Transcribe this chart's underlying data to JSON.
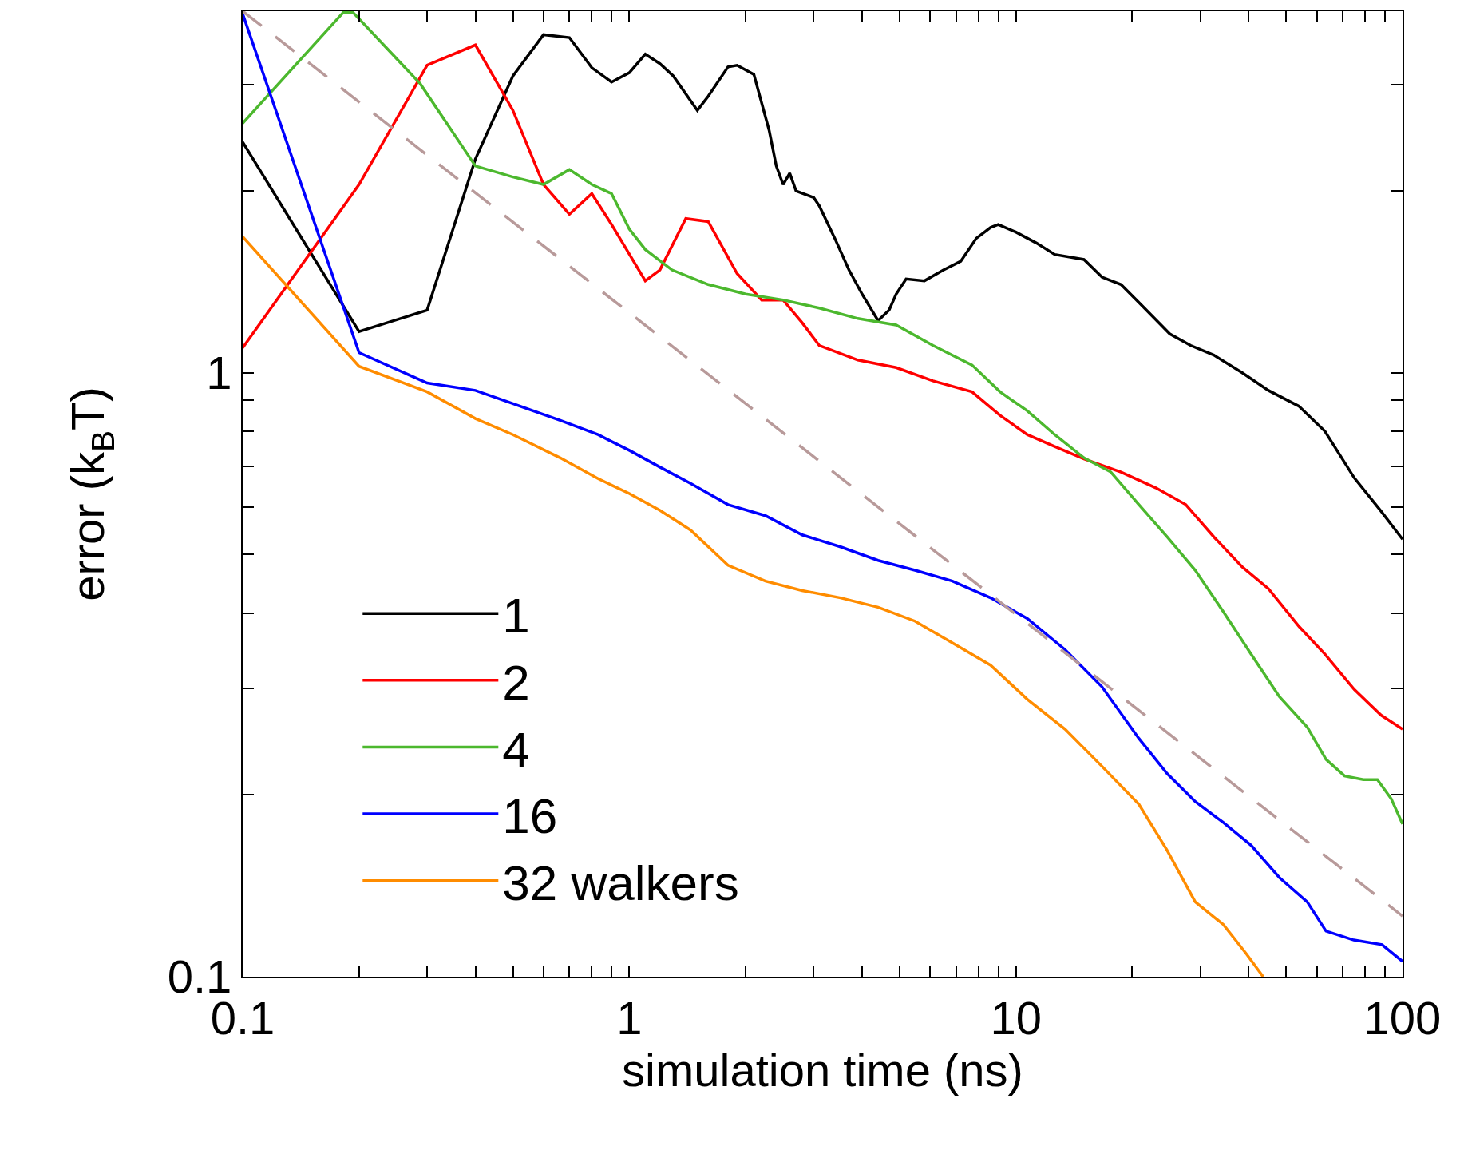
{
  "chart_data": {
    "type": "line",
    "xlabel": "simulation time (ns)",
    "ylabel": "error (k$_{B}$T)",
    "log": "xy",
    "legend": "bottom left",
    "marker": "none",
    "line_style": "solid",
    "xlim": [
      0.1,
      100
    ],
    "ylim": [
      0.1,
      3.97
    ],
    "xticks": [
      0.1,
      {
        "value": 0.2,
        "label": null
      },
      {
        "value": 0.3,
        "label": null
      },
      {
        "value": 0.4,
        "label": null
      },
      {
        "value": 0.5,
        "label": null
      },
      {
        "value": 0.6,
        "label": null
      },
      {
        "value": 0.7,
        "label": null
      },
      {
        "value": 0.8,
        "label": null
      },
      {
        "value": 0.9,
        "label": null
      },
      1,
      {
        "value": 2,
        "label": null
      },
      {
        "value": 3,
        "label": null
      },
      {
        "value": 4,
        "label": null
      },
      {
        "value": 5,
        "label": null
      },
      {
        "value": 6,
        "label": null
      },
      {
        "value": 7,
        "label": null
      },
      {
        "value": 8,
        "label": null
      },
      {
        "value": 9,
        "label": null
      },
      10,
      {
        "value": 20,
        "label": null
      },
      {
        "value": 30,
        "label": null
      },
      {
        "value": 40,
        "label": null
      },
      {
        "value": 50,
        "label": null
      },
      {
        "value": 60,
        "label": null
      },
      {
        "value": 70,
        "label": null
      },
      {
        "value": 80,
        "label": null
      },
      {
        "value": 90,
        "label": null
      },
      100
    ],
    "yticks": [
      0.1,
      {
        "value": 0.2,
        "label": null
      },
      {
        "value": 0.3,
        "label": null
      },
      {
        "value": 0.4,
        "label": null
      },
      {
        "value": 0.5,
        "label": null
      },
      {
        "value": 0.6,
        "label": null
      },
      {
        "value": 0.7,
        "label": null
      },
      {
        "value": 0.8,
        "label": null
      },
      {
        "value": 0.9,
        "label": null
      },
      1,
      {
        "value": 2,
        "label": null
      },
      {
        "value": 3,
        "label": null
      }
    ],
    "series": [
      {
        "name": "1",
        "color": "#000000",
        "x": [
          0.1,
          0.2,
          0.3,
          0.4,
          0.5,
          0.6,
          0.7,
          0.8,
          0.9,
          1,
          1.1,
          1.2,
          1.3,
          1.5,
          1.6,
          1.8,
          1.9,
          2.1,
          2.3,
          2.4,
          2.5,
          2.6,
          2.7,
          3.0,
          3.1,
          3.4,
          3.7,
          4.0,
          4.4,
          4.7,
          4.9,
          5.2,
          5.8,
          6.5,
          7.2,
          7.9,
          8.6,
          9.0,
          10,
          11.3,
          12.6,
          15,
          16.7,
          18.7,
          21,
          25,
          28.3,
          32.5,
          38.5,
          45,
          54,
          63,
          75,
          88,
          100
        ],
        "values": [
          2.41,
          1.17,
          1.27,
          2.26,
          3.1,
          3.63,
          3.59,
          3.2,
          3.03,
          3.14,
          3.37,
          3.25,
          3.1,
          2.72,
          2.87,
          3.21,
          3.23,
          3.12,
          2.52,
          2.2,
          2.05,
          2.14,
          2.0,
          1.95,
          1.89,
          1.67,
          1.48,
          1.35,
          1.22,
          1.27,
          1.35,
          1.43,
          1.42,
          1.48,
          1.53,
          1.67,
          1.74,
          1.76,
          1.71,
          1.64,
          1.57,
          1.54,
          1.44,
          1.4,
          1.3,
          1.16,
          1.11,
          1.07,
          1.0,
          0.935,
          0.88,
          0.8,
          0.67,
          0.59,
          0.53
        ]
      },
      {
        "name": "2",
        "color": "#ff0000",
        "x": [
          0.1,
          0.2,
          0.3,
          0.4,
          0.5,
          0.6,
          0.7,
          0.8,
          0.9,
          1.1,
          1.2,
          1.4,
          1.6,
          1.9,
          2.2,
          2.5,
          2.8,
          3.1,
          3.9,
          4.9,
          6.1,
          7.7,
          9.1,
          10.7,
          12.6,
          15,
          18.7,
          23,
          27.5,
          32.5,
          38.5,
          45,
          54,
          63,
          75,
          88,
          100
        ],
        "values": [
          1.1,
          2.05,
          3.23,
          3.49,
          2.72,
          2.05,
          1.83,
          1.98,
          1.76,
          1.42,
          1.48,
          1.8,
          1.78,
          1.46,
          1.32,
          1.32,
          1.21,
          1.11,
          1.05,
          1.02,
          0.97,
          0.93,
          0.85,
          0.79,
          0.755,
          0.72,
          0.685,
          0.645,
          0.605,
          0.535,
          0.477,
          0.439,
          0.38,
          0.342,
          0.299,
          0.271,
          0.257
        ]
      },
      {
        "name": "4",
        "color": "#4cb82e",
        "x": [
          0.1,
          0.182,
          0.193,
          0.288,
          0.4,
          0.5,
          0.6,
          0.7,
          0.8,
          0.9,
          1,
          1.1,
          1.29,
          1.6,
          2.0,
          2.5,
          3.1,
          3.9,
          4.9,
          6.1,
          7.7,
          9.1,
          10.7,
          12.6,
          15,
          17.6,
          20.8,
          24.6,
          29.1,
          34.4,
          40.6,
          48,
          56.7,
          63.4,
          70.8,
          79.2,
          86.1,
          93.5,
          100
        ],
        "values": [
          2.59,
          3.95,
          3.95,
          3.01,
          2.2,
          2.11,
          2.05,
          2.17,
          2.05,
          1.98,
          1.73,
          1.6,
          1.48,
          1.4,
          1.35,
          1.32,
          1.28,
          1.23,
          1.2,
          1.11,
          1.03,
          0.93,
          0.865,
          0.79,
          0.723,
          0.685,
          0.605,
          0.535,
          0.471,
          0.402,
          0.342,
          0.291,
          0.259,
          0.229,
          0.215,
          0.212,
          0.212,
          0.197,
          0.179
        ]
      },
      {
        "name": "16",
        "color": "#0000ff",
        "x": [
          0.1,
          0.2,
          0.3,
          0.4,
          0.5,
          0.663,
          0.83,
          1,
          1.2,
          1.44,
          1.8,
          2.25,
          2.8,
          3.52,
          4.4,
          5.48,
          6.85,
          8.6,
          10.7,
          13.4,
          16.7,
          20.8,
          24.6,
          29.1,
          34.4,
          40.6,
          48,
          56.7,
          63.4,
          74.8,
          88.5,
          100
        ],
        "values": [
          3.93,
          1.08,
          0.962,
          0.935,
          0.889,
          0.834,
          0.79,
          0.744,
          0.698,
          0.656,
          0.605,
          0.58,
          0.539,
          0.515,
          0.489,
          0.471,
          0.452,
          0.424,
          0.392,
          0.348,
          0.302,
          0.248,
          0.217,
          0.195,
          0.18,
          0.165,
          0.146,
          0.133,
          0.119,
          0.115,
          0.113,
          0.106
        ]
      },
      {
        "name": "32 walkers",
        "color": "#ff8c00",
        "x": [
          0.1,
          0.2,
          0.3,
          0.4,
          0.5,
          0.663,
          0.83,
          1,
          1.2,
          1.44,
          1.8,
          2.25,
          2.8,
          3.52,
          4.4,
          5.48,
          6.85,
          8.6,
          10.7,
          13.4,
          16.7,
          20.8,
          24.6,
          29.1,
          34.4,
          39.5,
          43.6
        ],
        "values": [
          1.68,
          1.025,
          0.93,
          0.84,
          0.79,
          0.723,
          0.668,
          0.631,
          0.592,
          0.549,
          0.48,
          0.452,
          0.436,
          0.424,
          0.409,
          0.388,
          0.357,
          0.328,
          0.288,
          0.257,
          0.223,
          0.193,
          0.162,
          0.133,
          0.122,
          0.109,
          0.1
        ]
      },
      {
        "color": "#b89a9a",
        "line_style": "dashed",
        "x": [
          0.1,
          100
        ],
        "values": [
          3.97,
          0.126
        ]
      }
    ]
  }
}
